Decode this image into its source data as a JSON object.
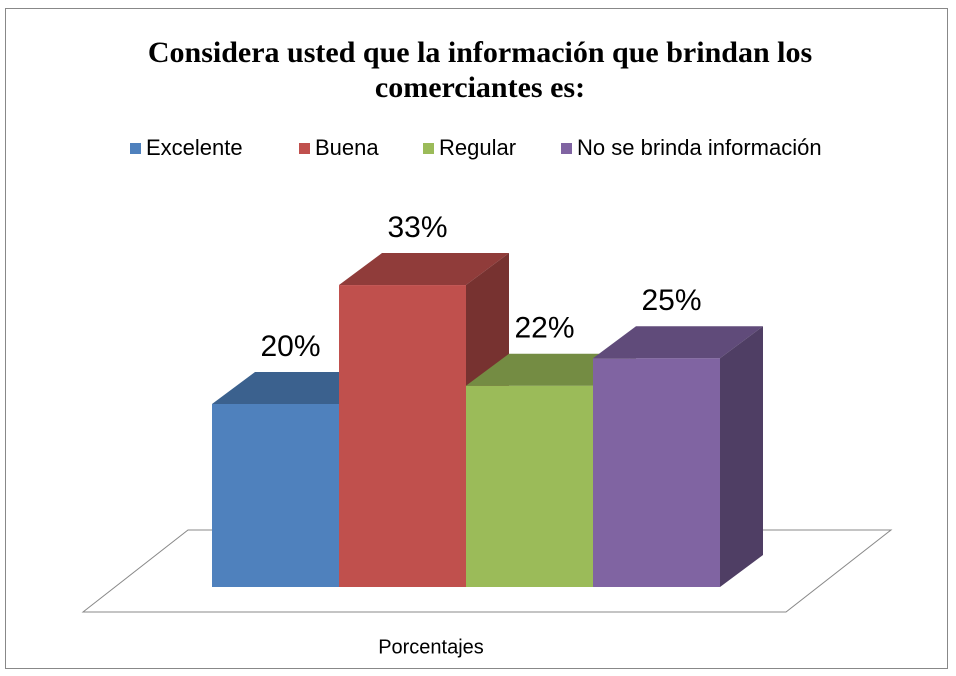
{
  "chart_data": {
    "type": "bar3d",
    "title": "Considera usted que la información que brindan los comerciantes es:",
    "categories": [
      "Porcentajes"
    ],
    "series": [
      {
        "name": "Excelente",
        "color": "#4f81bd",
        "values": [
          20
        ],
        "value_labels": [
          "20%"
        ]
      },
      {
        "name": "Buena",
        "color": "#c0504d",
        "values": [
          33
        ],
        "value_labels": [
          "33%"
        ]
      },
      {
        "name": "Regular",
        "color": "#9bbb59",
        "values": [
          22
        ],
        "value_labels": [
          "22%"
        ]
      },
      {
        "name": "No se brinda información",
        "color": "#8064a2",
        "values": [
          25
        ],
        "value_labels": [
          "25%"
        ]
      }
    ],
    "legend": "top"
  }
}
